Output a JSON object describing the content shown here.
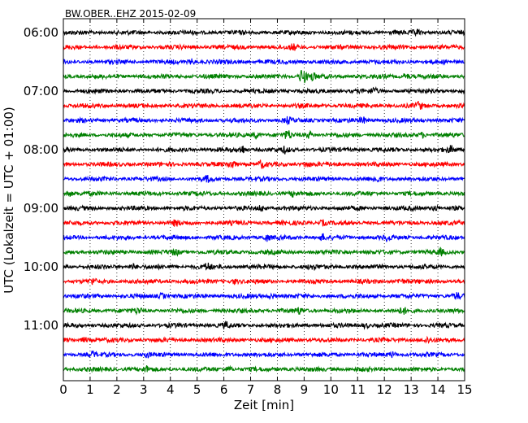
{
  "chart_data": {
    "type": "line",
    "title": "BW.OBER..EHZ 2015-02-09",
    "xlabel": "Zeit  [min]",
    "ylabel": "UTC (Lokalzeit = UTC + 01:00)",
    "xlim": [
      0,
      15
    ],
    "x_ticks": [
      0,
      1,
      2,
      3,
      4,
      5,
      6,
      7,
      8,
      9,
      10,
      11,
      12,
      13,
      14,
      15
    ],
    "y_tick_labels": [
      "06:00",
      "07:00",
      "08:00",
      "09:00",
      "10:00",
      "11:00"
    ],
    "grid": "vertical dotted",
    "trace_colors": [
      "#000000",
      "#ff0000",
      "#0000ff",
      "#008000"
    ],
    "rows": [
      {
        "start": "06:00",
        "bursts": [
          {
            "t": 13.2,
            "a": 0.5
          }
        ]
      },
      {
        "start": "06:15",
        "bursts": [
          {
            "t": 8.6,
            "a": 0.45
          }
        ]
      },
      {
        "start": "06:30",
        "bursts": [
          {
            "t": 4.8,
            "a": 0.4
          }
        ]
      },
      {
        "start": "06:45",
        "bursts": [
          {
            "t": 8.95,
            "a": 1.6
          },
          {
            "t": 9.3,
            "a": 0.7
          },
          {
            "t": 12.8,
            "a": 0.5
          }
        ]
      },
      {
        "start": "07:00",
        "bursts": [
          {
            "t": 11.6,
            "a": 0.45
          }
        ]
      },
      {
        "start": "07:15",
        "bursts": [
          {
            "t": 13.3,
            "a": 0.6
          }
        ]
      },
      {
        "start": "07:30",
        "bursts": [
          {
            "t": 8.4,
            "a": 0.5
          },
          {
            "t": 11.2,
            "a": 0.45
          }
        ]
      },
      {
        "start": "07:45",
        "bursts": [
          {
            "t": 7.2,
            "a": 0.6
          },
          {
            "t": 8.4,
            "a": 0.7
          },
          {
            "t": 9.2,
            "a": 0.55
          },
          {
            "t": 13.4,
            "a": 0.45
          }
        ]
      },
      {
        "start": "08:00",
        "bursts": [
          {
            "t": 6.7,
            "a": 0.7
          },
          {
            "t": 8.3,
            "a": 0.5
          },
          {
            "t": 14.5,
            "a": 0.55
          }
        ]
      },
      {
        "start": "08:15",
        "bursts": [
          {
            "t": 6.3,
            "a": 0.75
          },
          {
            "t": 7.4,
            "a": 0.6
          },
          {
            "t": 9.1,
            "a": 0.45
          }
        ]
      },
      {
        "start": "08:30",
        "bursts": [
          {
            "t": 5.4,
            "a": 0.45
          },
          {
            "t": 11.7,
            "a": 0.5
          }
        ]
      },
      {
        "start": "08:45",
        "bursts": [
          {
            "t": 0.2,
            "a": 0.45
          },
          {
            "t": 8.6,
            "a": 0.45
          }
        ]
      },
      {
        "start": "09:00",
        "bursts": [
          {
            "t": 7.4,
            "a": 0.45
          },
          {
            "t": 13.9,
            "a": 0.45
          }
        ]
      },
      {
        "start": "09:15",
        "bursts": [
          {
            "t": 4.2,
            "a": 0.4
          },
          {
            "t": 9.7,
            "a": 0.45
          }
        ]
      },
      {
        "start": "09:30",
        "bursts": [
          {
            "t": 7.6,
            "a": 0.5
          },
          {
            "t": 9.7,
            "a": 0.5
          },
          {
            "t": 12.1,
            "a": 0.45
          }
        ]
      },
      {
        "start": "09:45",
        "bursts": [
          {
            "t": 4.2,
            "a": 0.45
          },
          {
            "t": 14.1,
            "a": 0.45
          }
        ]
      },
      {
        "start": "10:00",
        "bursts": [
          {
            "t": 2.6,
            "a": 0.45
          },
          {
            "t": 5.4,
            "a": 0.55
          },
          {
            "t": 9.3,
            "a": 0.45
          }
        ]
      },
      {
        "start": "10:15",
        "bursts": [
          {
            "t": 1.1,
            "a": 0.4
          },
          {
            "t": 6.4,
            "a": 0.4
          },
          {
            "t": 12.6,
            "a": 0.45
          }
        ]
      },
      {
        "start": "10:30",
        "bursts": [
          {
            "t": 3.7,
            "a": 0.45
          },
          {
            "t": 7.8,
            "a": 0.45
          },
          {
            "t": 14.7,
            "a": 0.45
          }
        ]
      },
      {
        "start": "10:45",
        "bursts": [
          {
            "t": 2.8,
            "a": 0.45
          },
          {
            "t": 8.8,
            "a": 0.45
          },
          {
            "t": 12.7,
            "a": 0.45
          }
        ]
      },
      {
        "start": "11:00",
        "bursts": [
          {
            "t": 6.1,
            "a": 0.45
          },
          {
            "t": 11.3,
            "a": 0.4
          }
        ]
      },
      {
        "start": "11:15",
        "bursts": [
          {
            "t": 0.8,
            "a": 0.4
          },
          {
            "t": 13.6,
            "a": 0.4
          }
        ]
      },
      {
        "start": "11:30",
        "bursts": [
          {
            "t": 1.1,
            "a": 0.45
          },
          {
            "t": 3.1,
            "a": 0.4
          },
          {
            "t": 12.3,
            "a": 0.4
          }
        ]
      },
      {
        "start": "11:45",
        "bursts": [
          {
            "t": 3.1,
            "a": 0.4
          },
          {
            "t": 6.2,
            "a": 0.4
          }
        ]
      }
    ]
  }
}
